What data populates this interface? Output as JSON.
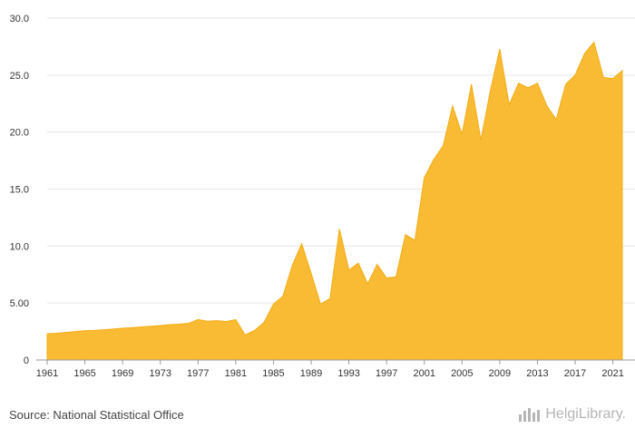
{
  "chart_data": {
    "type": "area",
    "x": [
      1961,
      1962,
      1963,
      1964,
      1965,
      1966,
      1967,
      1968,
      1969,
      1970,
      1971,
      1972,
      1973,
      1974,
      1975,
      1976,
      1977,
      1978,
      1979,
      1980,
      1981,
      1982,
      1983,
      1984,
      1985,
      1986,
      1987,
      1988,
      1989,
      1990,
      1991,
      1992,
      1993,
      1994,
      1995,
      1996,
      1997,
      1998,
      1999,
      2000,
      2001,
      2002,
      2003,
      2004,
      2005,
      2006,
      2007,
      2008,
      2009,
      2010,
      2011,
      2012,
      2013,
      2014,
      2015,
      2016,
      2017,
      2018,
      2019,
      2020,
      2021,
      2022
    ],
    "series": [
      {
        "values": [
          2.3,
          2.35,
          2.42,
          2.5,
          2.58,
          2.6,
          2.66,
          2.72,
          2.78,
          2.84,
          2.9,
          2.96,
          3.02,
          3.1,
          3.14,
          3.22,
          3.55,
          3.4,
          3.45,
          3.38,
          3.55,
          2.2,
          2.6,
          3.3,
          4.9,
          5.6,
          8.3,
          10.2,
          7.6,
          4.9,
          5.4,
          11.5,
          7.9,
          8.5,
          6.7,
          8.4,
          7.2,
          7.3,
          11.0,
          10.5,
          16.0,
          17.6,
          18.8,
          22.3,
          19.8,
          24.2,
          19.3,
          23.6,
          27.3,
          22.4,
          24.3,
          23.9,
          24.3,
          22.3,
          21.1,
          24.2,
          25.0,
          26.9,
          27.9,
          24.8,
          24.7,
          25.4
        ],
        "color": "#f9bb34"
      }
    ],
    "x_tick_labels": [
      "1961",
      "1965",
      "1969",
      "1973",
      "1977",
      "1981",
      "1985",
      "1989",
      "1993",
      "1997",
      "2001",
      "2005",
      "2009",
      "2013",
      "2017",
      "2021"
    ],
    "y_tick_labels": [
      "0",
      "5.00",
      "10.0",
      "15.0",
      "20.0",
      "25.0",
      "30.0"
    ],
    "y_ticks": [
      0,
      5,
      10,
      15,
      20,
      25,
      30
    ],
    "xlim": [
      1961,
      2022
    ],
    "ylim": [
      0,
      30
    ],
    "grid": true,
    "legend": "none"
  },
  "footer": {
    "source": "Source: National Statistical Office",
    "brand": "HelgiLibrary.",
    "brand_icon": "bar-chart-icon"
  }
}
